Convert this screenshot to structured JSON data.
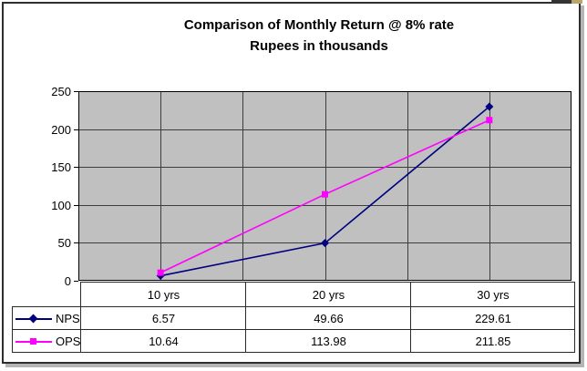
{
  "chart_data": {
    "type": "line",
    "title": "Comparison of Monthly Return @ 8% rate",
    "subtitle": "Rupees in thousands",
    "categories": [
      "10 yrs",
      "20 yrs",
      "30 yrs"
    ],
    "series": [
      {
        "name": "NPS",
        "color": "#000080",
        "marker": "diamond",
        "values": [
          6.57,
          49.66,
          229.61
        ]
      },
      {
        "name": "OPS",
        "color": "#FF00FF",
        "marker": "square",
        "values": [
          10.64,
          113.98,
          211.85
        ]
      }
    ],
    "ylim": [
      0,
      250
    ],
    "ytick_step": 50,
    "yticks": [
      "0",
      "50",
      "100",
      "150",
      "200",
      "250"
    ],
    "xlabel": "",
    "ylabel": "",
    "grid": "horizontal-major and vertical-half-category",
    "plot_bg": "#c0c0c0",
    "gridline_color": "#3d3d3d",
    "legend_position": "data-table-left",
    "data_table_shown": true
  }
}
